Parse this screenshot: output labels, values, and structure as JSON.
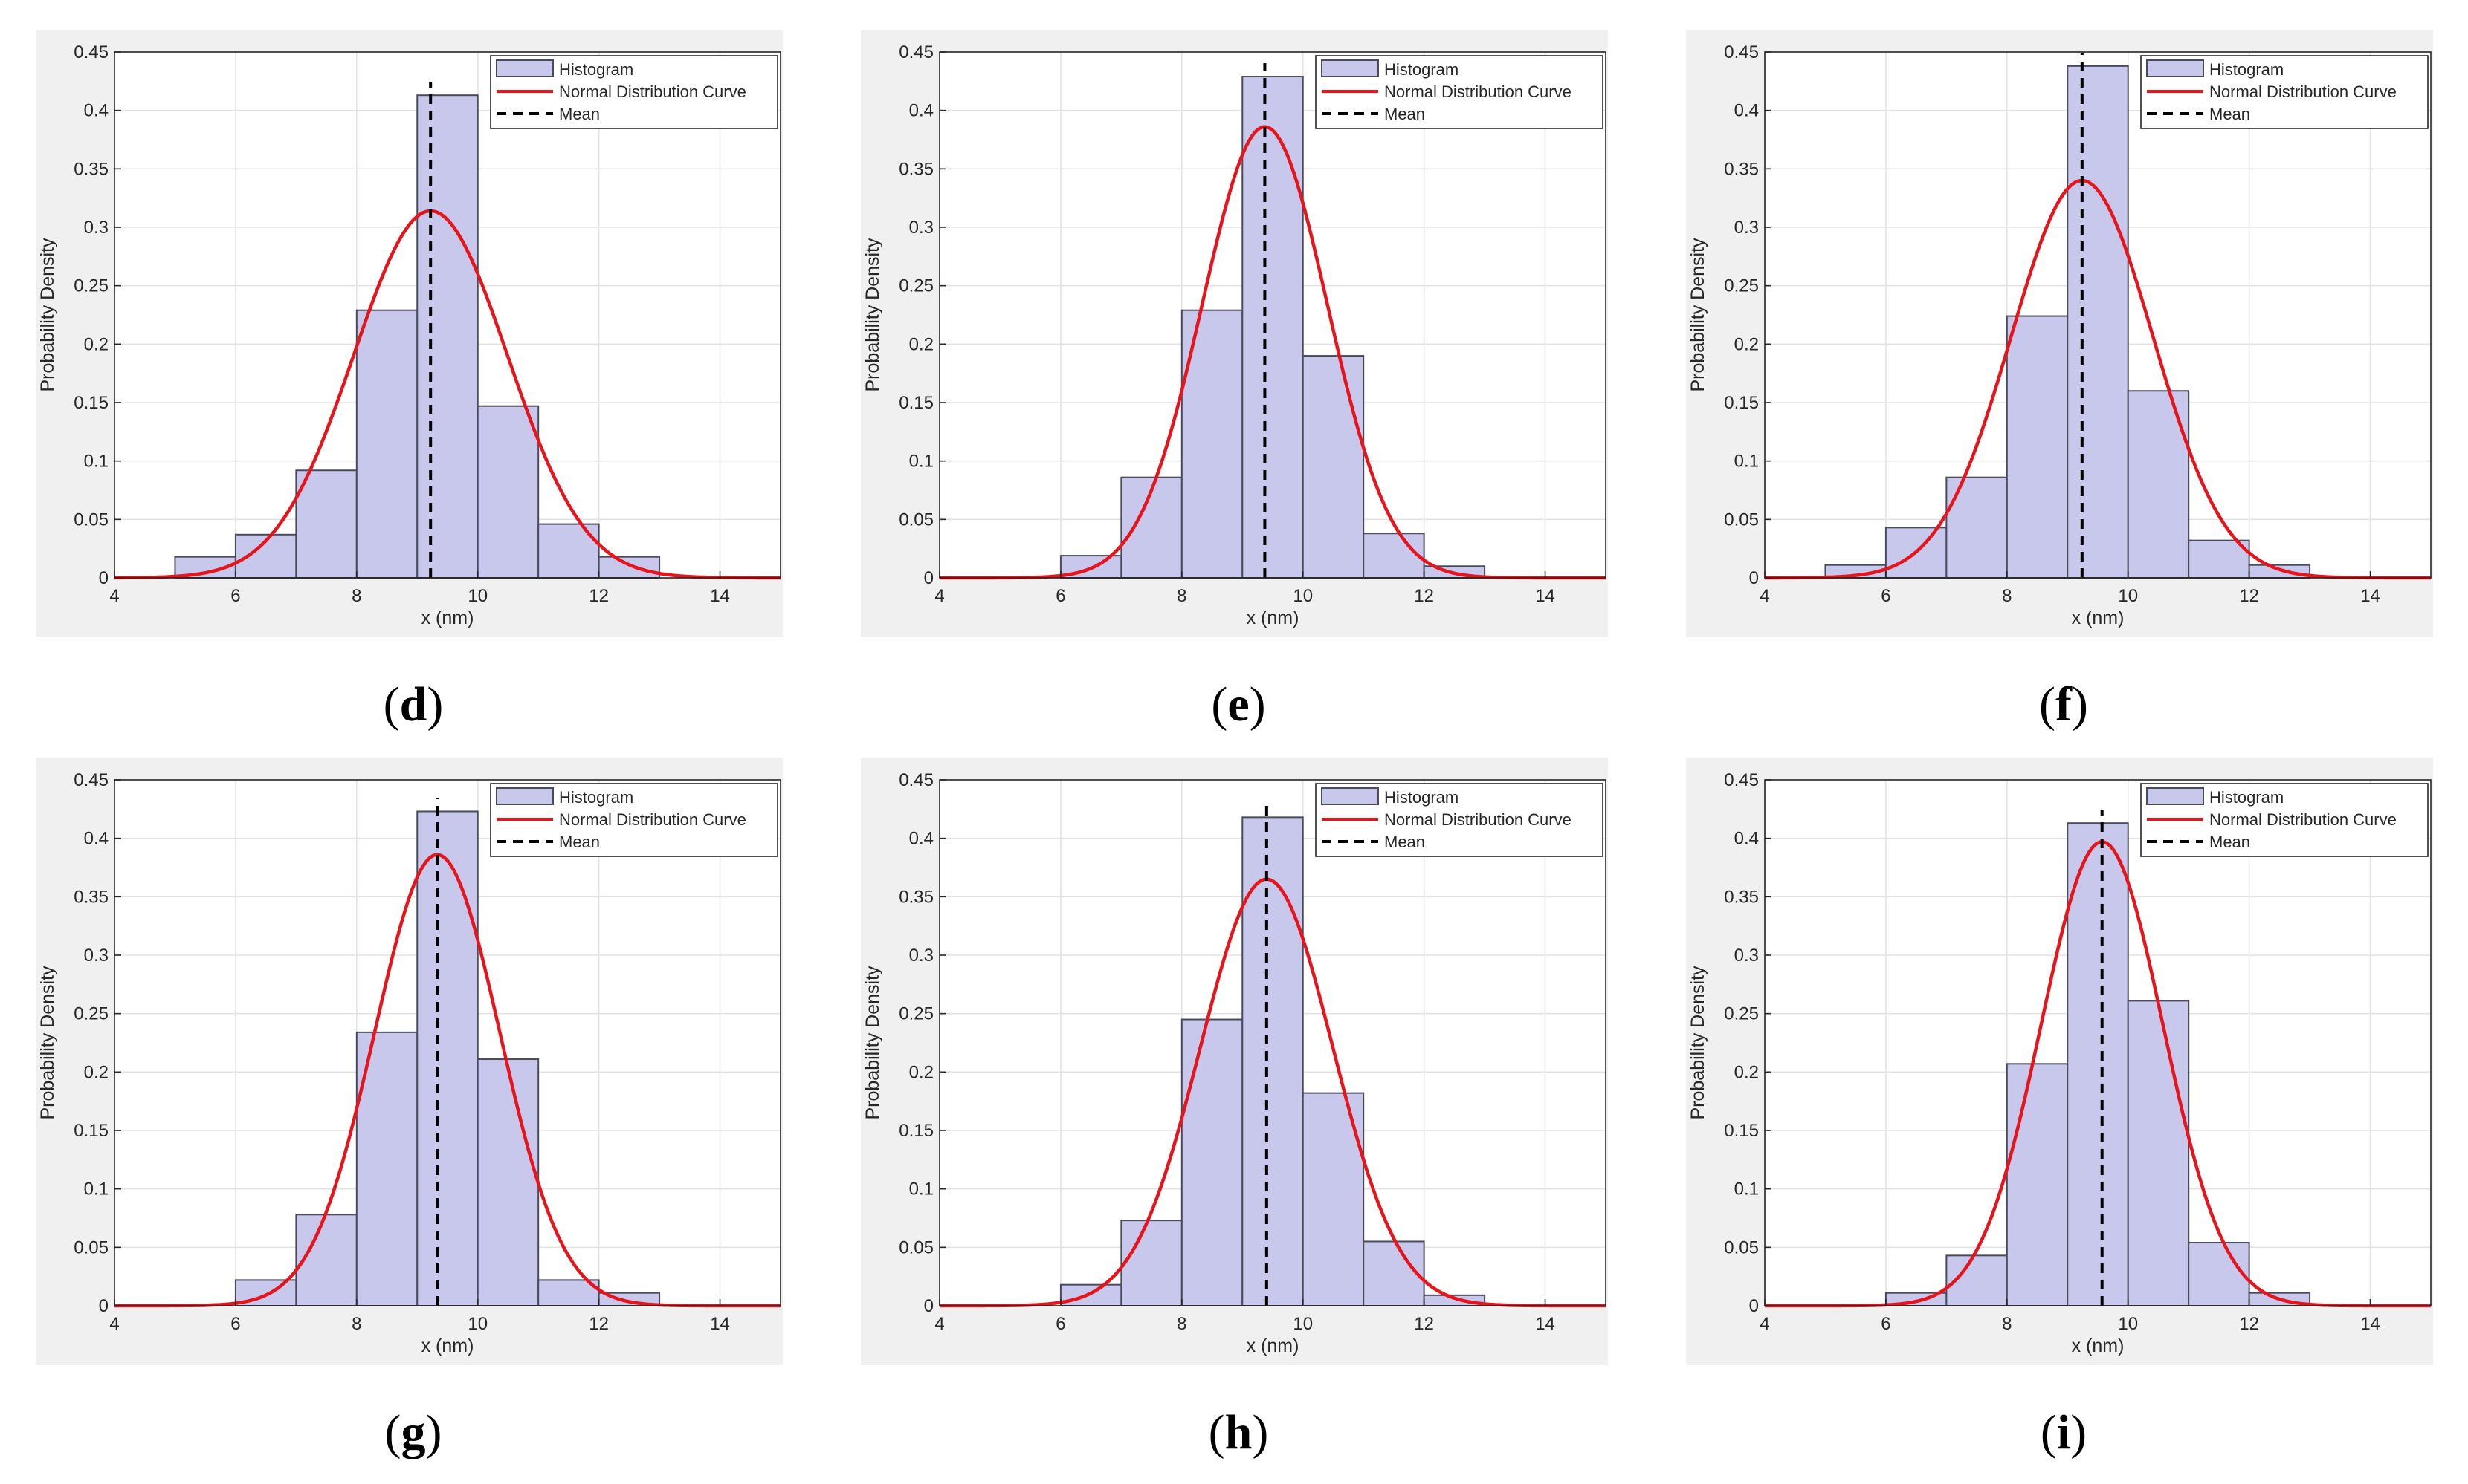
{
  "figure": {
    "colors": {
      "panel_bg": "#f0f0f0",
      "axes_bg": "#ffffff",
      "grid": "#e3e3e3",
      "axis": "#262626",
      "bar_fill": "#c8c8ec",
      "bar_edge": "#4a4a5a",
      "curve": "#e8141b",
      "mean": "#000000"
    }
  },
  "chart_data": [
    {
      "type": "bar",
      "panel_label": "d",
      "xlabel": "x (nm)",
      "ylabel": "Probability Density",
      "xlim": [
        4,
        15
      ],
      "ylim": [
        0,
        0.45
      ],
      "xticks": [
        4,
        6,
        8,
        10,
        12,
        14
      ],
      "yticks": [
        0,
        0.05,
        0.1,
        0.15,
        0.2,
        0.25,
        0.3,
        0.35,
        0.4,
        0.45
      ],
      "ytick_labels": [
        "0",
        "0.05",
        "0.1",
        "0.15",
        "0.2",
        "0.25",
        "0.3",
        "0.35",
        "0.4",
        "0.45"
      ],
      "bin_edges": [
        5,
        6,
        7,
        8,
        9,
        10,
        11,
        12,
        13
      ],
      "values": [
        0.018,
        0.037,
        0.092,
        0.229,
        0.413,
        0.147,
        0.046,
        0.018
      ],
      "normal_fit": {
        "mean": 9.22,
        "peak": 0.314
      },
      "mean": 9.22,
      "legend": {
        "histogram": "Histogram",
        "curve": "Normal Distribution Curve",
        "mean": "Mean"
      },
      "legend_position": "top-right"
    },
    {
      "type": "bar",
      "panel_label": "e",
      "xlabel": "x (nm)",
      "ylabel": "Probability Density",
      "xlim": [
        4,
        15
      ],
      "ylim": [
        0,
        0.45
      ],
      "xticks": [
        4,
        6,
        8,
        10,
        12,
        14
      ],
      "yticks": [
        0,
        0.05,
        0.1,
        0.15,
        0.2,
        0.25,
        0.3,
        0.35,
        0.4,
        0.45
      ],
      "ytick_labels": [
        "0",
        "0.05",
        "0.1",
        "0.15",
        "0.2",
        "0.25",
        "0.3",
        "0.35",
        "0.4",
        "0.45"
      ],
      "bin_edges": [
        6,
        7,
        8,
        9,
        10,
        11,
        12,
        13
      ],
      "values": [
        0.019,
        0.086,
        0.229,
        0.429,
        0.19,
        0.038,
        0.01
      ],
      "normal_fit": {
        "mean": 9.37,
        "peak": 0.386
      },
      "mean": 9.37,
      "legend": {
        "histogram": "Histogram",
        "curve": "Normal Distribution Curve",
        "mean": "Mean"
      },
      "legend_position": "top-right"
    },
    {
      "type": "bar",
      "panel_label": "f",
      "xlabel": "x (nm)",
      "ylabel": "Probability Density",
      "xlim": [
        4,
        15
      ],
      "ylim": [
        0,
        0.45
      ],
      "xticks": [
        4,
        6,
        8,
        10,
        12,
        14
      ],
      "yticks": [
        0,
        0.05,
        0.1,
        0.15,
        0.2,
        0.25,
        0.3,
        0.35,
        0.4,
        0.45
      ],
      "ytick_labels": [
        "0",
        "0.05",
        "0.1",
        "0.15",
        "0.2",
        "0.25",
        "0.3",
        "0.35",
        "0.4",
        "0.45"
      ],
      "bin_edges": [
        5,
        6,
        7,
        8,
        9,
        10,
        11,
        12,
        13
      ],
      "values": [
        0.011,
        0.043,
        0.086,
        0.224,
        0.438,
        0.16,
        0.032,
        0.011
      ],
      "normal_fit": {
        "mean": 9.24,
        "peak": 0.34
      },
      "mean": 9.24,
      "legend": {
        "histogram": "Histogram",
        "curve": "Normal Distribution Curve",
        "mean": "Mean"
      },
      "legend_position": "top-right"
    },
    {
      "type": "bar",
      "panel_label": "g",
      "xlabel": "x (nm)",
      "ylabel": "Probability Density",
      "xlim": [
        4,
        15
      ],
      "ylim": [
        0,
        0.45
      ],
      "xticks": [
        4,
        6,
        8,
        10,
        12,
        14
      ],
      "yticks": [
        0,
        0.05,
        0.1,
        0.15,
        0.2,
        0.25,
        0.3,
        0.35,
        0.4,
        0.45
      ],
      "ytick_labels": [
        "0",
        "0.05",
        "0.1",
        "0.15",
        "0.2",
        "0.25",
        "0.3",
        "0.35",
        "0.4",
        "0.45"
      ],
      "bin_edges": [
        6,
        7,
        8,
        9,
        10,
        11,
        12,
        13
      ],
      "values": [
        0.022,
        0.078,
        0.234,
        0.423,
        0.211,
        0.022,
        0.011
      ],
      "normal_fit": {
        "mean": 9.33,
        "peak": 0.386
      },
      "mean": 9.33,
      "legend": {
        "histogram": "Histogram",
        "curve": "Normal Distribution Curve",
        "mean": "Mean"
      },
      "legend_position": "top-right"
    },
    {
      "type": "bar",
      "panel_label": "h",
      "xlabel": "x (nm)",
      "ylabel": "Probability Density",
      "xlim": [
        4,
        15
      ],
      "ylim": [
        0,
        0.45
      ],
      "xticks": [
        4,
        6,
        8,
        10,
        12,
        14
      ],
      "yticks": [
        0,
        0.05,
        0.1,
        0.15,
        0.2,
        0.25,
        0.3,
        0.35,
        0.4,
        0.45
      ],
      "ytick_labels": [
        "0",
        "0.05",
        "0.1",
        "0.15",
        "0.2",
        "0.25",
        "0.3",
        "0.35",
        "0.4",
        "0.45"
      ],
      "bin_edges": [
        6,
        7,
        8,
        9,
        10,
        11,
        12,
        13
      ],
      "values": [
        0.018,
        0.073,
        0.245,
        0.418,
        0.182,
        0.055,
        0.009
      ],
      "normal_fit": {
        "mean": 9.4,
        "peak": 0.365
      },
      "mean": 9.4,
      "legend": {
        "histogram": "Histogram",
        "curve": "Normal Distribution Curve",
        "mean": "Mean"
      },
      "legend_position": "top-right"
    },
    {
      "type": "bar",
      "panel_label": "i",
      "xlabel": "x (nm)",
      "ylabel": "Probability Density",
      "xlim": [
        4,
        15
      ],
      "ylim": [
        0,
        0.45
      ],
      "xticks": [
        4,
        6,
        8,
        10,
        12,
        14
      ],
      "yticks": [
        0,
        0.05,
        0.1,
        0.15,
        0.2,
        0.25,
        0.3,
        0.35,
        0.4,
        0.45
      ],
      "ytick_labels": [
        "0",
        "0.05",
        "0.1",
        "0.15",
        "0.2",
        "0.25",
        "0.3",
        "0.35",
        "0.4",
        "0.45"
      ],
      "bin_edges": [
        6,
        7,
        8,
        9,
        10,
        11,
        12,
        13
      ],
      "values": [
        0.011,
        0.043,
        0.207,
        0.413,
        0.261,
        0.054,
        0.011
      ],
      "normal_fit": {
        "mean": 9.57,
        "peak": 0.397
      },
      "mean": 9.57,
      "legend": {
        "histogram": "Histogram",
        "curve": "Normal Distribution Curve",
        "mean": "Mean"
      },
      "legend_position": "top-right"
    }
  ]
}
